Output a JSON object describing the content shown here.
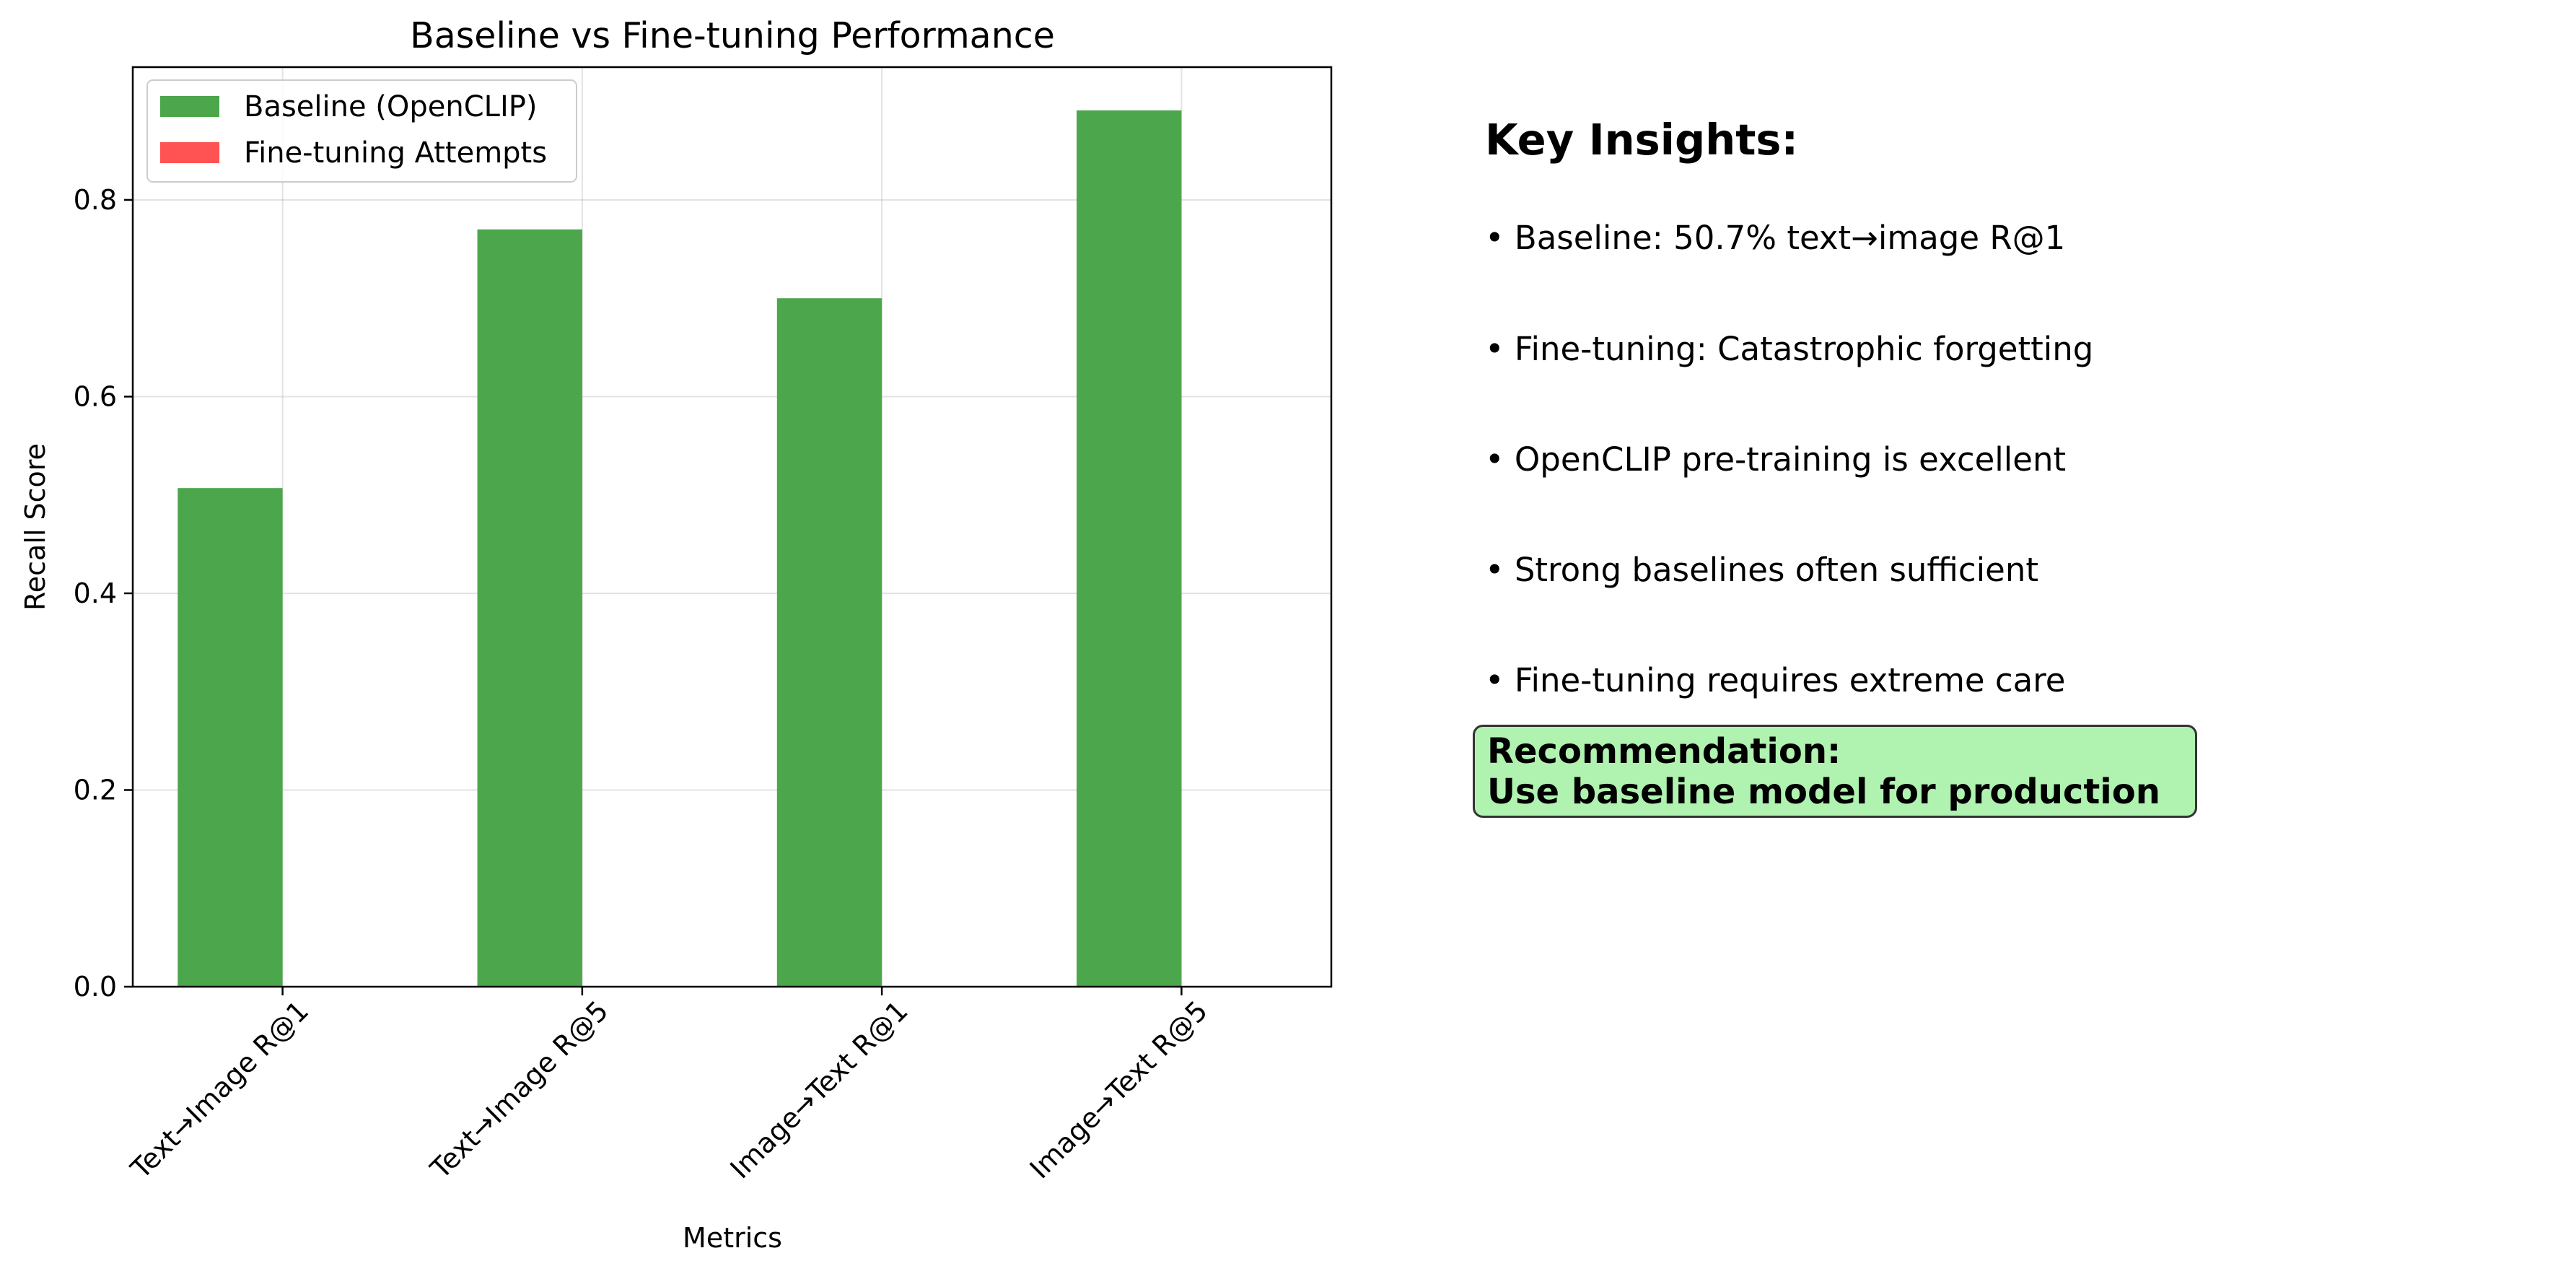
{
  "chart_data": {
    "type": "bar",
    "title": "Baseline vs Fine-tuning Performance",
    "xlabel": "Metrics",
    "ylabel": "Recall Score",
    "categories": [
      "Text→Image R@1",
      "Text→Image R@5",
      "Image→Text R@1",
      "Image→Text R@5"
    ],
    "series": [
      {
        "name": "Baseline (OpenCLIP)",
        "values": [
          0.507,
          0.77,
          0.7,
          0.891
        ],
        "color": "#4ca64c"
      },
      {
        "name": "Fine-tuning Attempts",
        "values": [
          0,
          0,
          0,
          0
        ],
        "color": "#ff5252"
      }
    ],
    "ylim": [
      0,
      0.935
    ],
    "yticks": [
      0.0,
      0.2,
      0.4,
      0.6,
      0.8
    ],
    "ytick_labels": [
      "0.0",
      "0.2",
      "0.4",
      "0.6",
      "0.8"
    ],
    "grid": true,
    "legend_position": "top-left"
  },
  "insights": {
    "title": "Key Insights:",
    "items": [
      "• Baseline: 50.7% text→image R@1",
      "• Fine-tuning: Catastrophic forgetting",
      "• OpenCLIP pre-training is excellent",
      "• Strong baselines often sufficient",
      "• Fine-tuning requires extreme care"
    ],
    "recommendation": {
      "line1": "Recommendation:",
      "line2": "Use baseline model for production"
    }
  }
}
